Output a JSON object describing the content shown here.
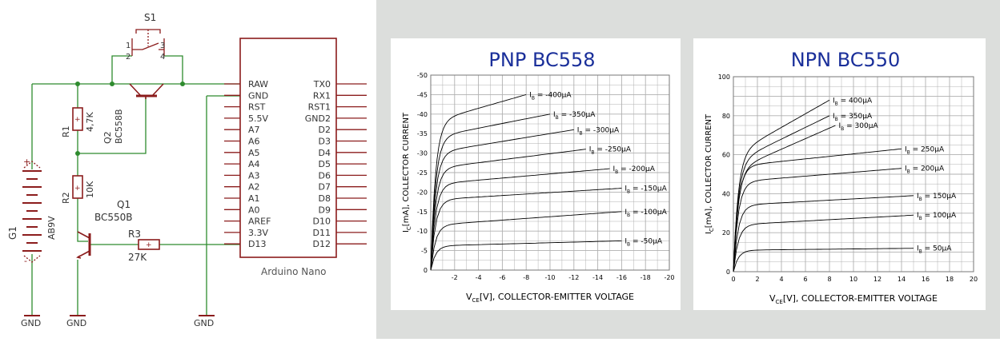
{
  "schematic": {
    "switch": {
      "name": "S1",
      "pins": [
        "1",
        "2",
        "3",
        "4"
      ]
    },
    "battery": {
      "name": "G1",
      "value": "AB9V",
      "plus": "+",
      "minus": "-"
    },
    "r1": {
      "name": "R1",
      "value": "4,7K"
    },
    "r2": {
      "name": "R2",
      "value": "10K"
    },
    "r3": {
      "name": "R3",
      "value": "27K"
    },
    "q1": {
      "name": "Q1",
      "value": "BC550B"
    },
    "q2": {
      "name": "Q2",
      "value": "BC558B"
    },
    "gnd": "GND",
    "arduino": {
      "name": "Arduino Nano",
      "left_pins": [
        "RAW",
        "GND",
        "RST",
        "5.5V",
        "A7",
        "A6",
        "A5",
        "A4",
        "A3",
        "A2",
        "A1",
        "A0",
        "AREF",
        "3.3V",
        "D13"
      ],
      "right_pins": [
        "TX0",
        "RX1",
        "RST1",
        "GND2",
        "D2",
        "D3",
        "D4",
        "D5",
        "D6",
        "D7",
        "D8",
        "D9",
        "D10",
        "D11",
        "D12"
      ]
    }
  },
  "colors": {
    "schematic_line": "#8b1c1c",
    "wire": "#2e8b2e",
    "component": "#8b1c1c",
    "chart_title": "#1a2f9a",
    "curve": "#000000",
    "grid": "#999999"
  },
  "chart_data": [
    {
      "type": "line",
      "title": "PNP    BC558",
      "xlabel": "V<sub>CE</sub>[V], COLLECTOR-EMITTER VOLTAGE",
      "xlabel_main": "V",
      "xlabel_sub": "CE",
      "xlabel_rest": "[V], COLLECTOR-EMITTER VOLTAGE",
      "ylabel_main": "I",
      "ylabel_sub": "C",
      "ylabel_rest": "[mA], COLLECTOR CURRENT",
      "x_ticks": [
        "-2",
        "-4",
        "-6",
        "-8",
        "-10",
        "-12",
        "-14",
        "-16",
        "-18",
        "-20"
      ],
      "y_ticks": [
        "-50",
        "-45",
        "-40",
        "-35",
        "-30",
        "-25",
        "-20",
        "-15",
        "-10",
        "-5",
        "0"
      ],
      "xlim": [
        0,
        -20
      ],
      "ylim": [
        0,
        -50
      ],
      "grid": true,
      "series": [
        {
          "name": "IB = -400µA",
          "label_sub": "B",
          "label_val": "= -400µA",
          "sat": -38,
          "end": -45,
          "x_end": -8
        },
        {
          "name": "IB = -350µA",
          "label_sub": "B",
          "label_val": "= -350µA",
          "sat": -34,
          "end": -40,
          "x_end": -10
        },
        {
          "name": "IB = -300µA",
          "label_sub": "B",
          "label_val": "= -300µA",
          "sat": -30,
          "end": -36,
          "x_end": -12
        },
        {
          "name": "IB = -250µA",
          "label_sub": "B",
          "label_val": "= -250µA",
          "sat": -26,
          "end": -31,
          "x_end": -13
        },
        {
          "name": "IB = -200µA",
          "label_sub": "B",
          "label_val": "= -200µA",
          "sat": -22,
          "end": -26,
          "x_end": -15
        },
        {
          "name": "IB = -150µA",
          "label_sub": "B",
          "label_val": "= -150µA",
          "sat": -18,
          "end": -21,
          "x_end": -16
        },
        {
          "name": "IB = -100µA",
          "label_sub": "B",
          "label_val": "= -100µA",
          "sat": -11.5,
          "end": -15,
          "x_end": -16
        },
        {
          "name": "IB = -50µA",
          "label_sub": "B",
          "label_val": "= -50µA",
          "sat": -6.2,
          "end": -7.5,
          "x_end": -16
        }
      ]
    },
    {
      "type": "line",
      "title": "NPN    BC550",
      "xlabel_main": "V",
      "xlabel_sub": "CE",
      "xlabel_rest": "[V], COLLECTOR-EMITTER VOLTAGE",
      "ylabel_main": "I",
      "ylabel_sub": "C",
      "ylabel_rest": "[mA], COLLECTOR CURRENT",
      "x_ticks": [
        "0",
        "2",
        "4",
        "6",
        "8",
        "10",
        "12",
        "14",
        "16",
        "18",
        "20"
      ],
      "y_ticks": [
        "0",
        "20",
        "40",
        "60",
        "80",
        "100"
      ],
      "xlim": [
        0,
        20
      ],
      "ylim": [
        0,
        100
      ],
      "grid": true,
      "series": [
        {
          "name": "IB = 400µA",
          "label_sub": "B",
          "label_val": "= 400µA",
          "sat": 60,
          "end": 88,
          "x_end": 8
        },
        {
          "name": "IB = 350µA",
          "label_sub": "B",
          "label_val": "= 350µA",
          "sat": 56,
          "end": 80,
          "x_end": 8
        },
        {
          "name": "IB = 300µA",
          "label_sub": "B",
          "label_val": "= 300µA",
          "sat": 52,
          "end": 75,
          "x_end": 8.5
        },
        {
          "name": "IB = 250µA",
          "label_sub": "B",
          "label_val": "= 250µA",
          "sat": 54,
          "end": 63,
          "x_end": 14
        },
        {
          "name": "IB = 200µA",
          "label_sub": "B",
          "label_val": "= 200µA",
          "sat": 46,
          "end": 53,
          "x_end": 14
        },
        {
          "name": "IB = 150µA",
          "label_sub": "B",
          "label_val": "= 150µA",
          "sat": 34,
          "end": 39,
          "x_end": 15
        },
        {
          "name": "IB = 100µA",
          "label_sub": "B",
          "label_val": "= 100µA",
          "sat": 24,
          "end": 29,
          "x_end": 15
        },
        {
          "name": "IB = 50µA",
          "label_sub": "B",
          "label_val": "= 50µA",
          "sat": 11,
          "end": 12,
          "x_end": 15
        }
      ]
    }
  ]
}
